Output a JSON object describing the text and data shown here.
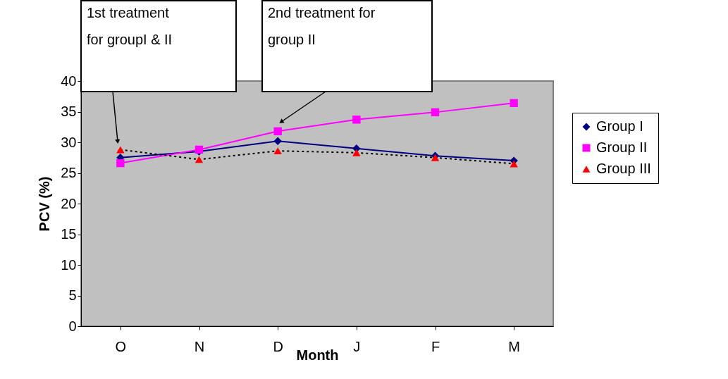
{
  "chart_data": {
    "type": "line",
    "xlabel": "Month",
    "ylabel": "PCV (%)",
    "categories": [
      "O",
      "N",
      "D",
      "J",
      "F",
      "M"
    ],
    "series": [
      {
        "name": "Group I",
        "color": "#000080",
        "marker": "diamond",
        "line_style": "solid",
        "values": [
          27.5,
          28.5,
          30.2,
          29.0,
          27.8,
          27.0
        ]
      },
      {
        "name": "Group II",
        "color": "#ff00ff",
        "marker": "square",
        "line_style": "solid",
        "values": [
          26.6,
          28.8,
          31.8,
          33.7,
          34.9,
          36.4
        ]
      },
      {
        "name": "Group III",
        "color": "#ff0000",
        "marker": "triangle",
        "line_style": "dotted",
        "values": [
          28.8,
          27.2,
          28.6,
          28.3,
          27.5,
          26.5
        ]
      }
    ],
    "ylim": [
      0,
      40
    ],
    "yticks": [
      0,
      5,
      10,
      15,
      20,
      25,
      30,
      35,
      40
    ],
    "grid": false,
    "legend": "right",
    "annotations": [
      "1st  treatment\nfor groupI & II",
      "2nd   treatment for\ngroup II"
    ]
  }
}
